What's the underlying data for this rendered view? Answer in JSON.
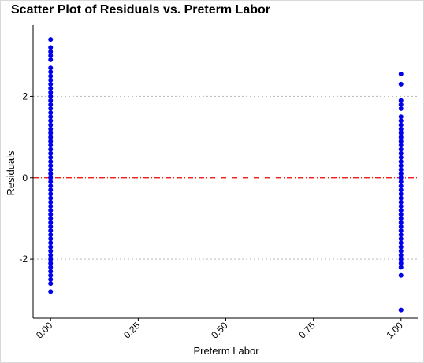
{
  "chart_data": {
    "type": "scatter",
    "title": "Scatter Plot of Residuals vs. Preterm Labor",
    "xlabel": "Preterm Labor",
    "ylabel": "Residuals",
    "xlim": [
      -0.05,
      1.05
    ],
    "ylim": [
      -3.45,
      3.75
    ],
    "x_ticks": [
      0,
      0.25,
      0.5,
      0.75,
      1
    ],
    "x_tick_labels": [
      "0.00",
      "0.25",
      "0.50",
      "0.75",
      "1.00"
    ],
    "y_ticks": [
      -2,
      0,
      2
    ],
    "y_tick_labels": [
      "-2",
      "0",
      "2"
    ],
    "point_color": "#0000ee",
    "reference_lines": [
      {
        "y": 0,
        "color": "#ee0000",
        "style": "dashdot"
      },
      {
        "y": 2,
        "color": "#bfbfbf",
        "style": "dotted"
      },
      {
        "y": -2,
        "color": "#bfbfbf",
        "style": "dotted"
      }
    ],
    "series": [
      {
        "x": 0,
        "values": [
          3.4,
          3.2,
          3.1,
          3.0,
          2.9,
          2.7,
          2.6,
          2.5,
          2.4,
          2.3,
          2.2,
          2.1,
          2.0,
          1.9,
          1.8,
          1.7,
          1.6,
          1.5,
          1.4,
          1.3,
          1.2,
          1.1,
          1.0,
          0.9,
          0.8,
          0.7,
          0.6,
          0.5,
          0.4,
          0.3,
          0.2,
          0.1,
          0.0,
          -0.1,
          -0.2,
          -0.3,
          -0.4,
          -0.5,
          -0.6,
          -0.7,
          -0.8,
          -0.9,
          -1.0,
          -1.1,
          -1.2,
          -1.3,
          -1.4,
          -1.5,
          -1.6,
          -1.7,
          -1.8,
          -1.9,
          -2.0,
          -2.1,
          -2.2,
          -2.3,
          -2.4,
          -2.5,
          -2.6,
          -2.8
        ]
      },
      {
        "x": 1,
        "values": [
          2.55,
          2.3,
          1.9,
          1.8,
          1.7,
          1.5,
          1.4,
          1.3,
          1.2,
          1.1,
          1.0,
          0.9,
          0.8,
          0.7,
          0.6,
          0.5,
          0.4,
          0.3,
          0.2,
          0.1,
          0.0,
          -0.1,
          -0.2,
          -0.3,
          -0.4,
          -0.5,
          -0.6,
          -0.7,
          -0.8,
          -0.9,
          -1.0,
          -1.1,
          -1.2,
          -1.3,
          -1.4,
          -1.5,
          -1.6,
          -1.7,
          -1.8,
          -1.9,
          -2.0,
          -2.1,
          -2.2,
          -2.4,
          -3.25
        ]
      }
    ]
  }
}
